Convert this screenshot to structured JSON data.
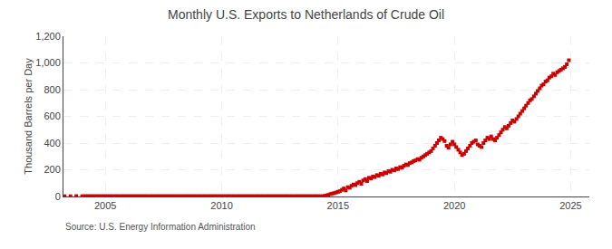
{
  "chart_data": {
    "type": "scatter",
    "title": "Monthly U.S. Exports to Netherlands of Crude Oil",
    "ylabel": "Thousand Barrels per Day",
    "annotations": [
      "Source: U.S. Energy Information Administration"
    ],
    "color": "#cc0000",
    "marker": "square",
    "grid": true,
    "xlim": [
      2003.2,
      2025.8
    ],
    "xticks": [
      2005,
      2010,
      2015,
      2020,
      2025
    ],
    "ylim": [
      0,
      1200
    ],
    "yticks": [
      0,
      200,
      400,
      600,
      800,
      {
        "value": 1000,
        "label": "1,000"
      },
      {
        "value": 1200,
        "label": "1,200"
      }
    ],
    "x": [
      2003.25,
      2003.5,
      2003.75,
      2004.0,
      2004.08,
      2004.17,
      2004.25,
      2004.33,
      2004.42,
      2004.5,
      2004.58,
      2004.67,
      2004.75,
      2004.83,
      2004.92,
      2005.0,
      2005.08,
      2005.17,
      2005.25,
      2005.33,
      2005.42,
      2005.5,
      2005.58,
      2005.67,
      2005.75,
      2005.83,
      2005.92,
      2006.0,
      2006.08,
      2006.17,
      2006.25,
      2006.33,
      2006.42,
      2006.5,
      2006.58,
      2006.67,
      2006.75,
      2006.83,
      2006.92,
      2007.0,
      2007.08,
      2007.17,
      2007.25,
      2007.33,
      2007.42,
      2007.5,
      2007.58,
      2007.67,
      2007.75,
      2007.83,
      2007.92,
      2008.0,
      2008.08,
      2008.17,
      2008.25,
      2008.33,
      2008.42,
      2008.5,
      2008.58,
      2008.67,
      2008.75,
      2008.83,
      2008.92,
      2009.0,
      2009.08,
      2009.17,
      2009.25,
      2009.33,
      2009.42,
      2009.5,
      2009.58,
      2009.67,
      2009.75,
      2009.83,
      2009.92,
      2010.0,
      2010.08,
      2010.17,
      2010.25,
      2010.33,
      2010.42,
      2010.5,
      2010.58,
      2010.67,
      2010.75,
      2010.83,
      2010.92,
      2011.0,
      2011.08,
      2011.17,
      2011.25,
      2011.33,
      2011.42,
      2011.5,
      2011.58,
      2011.67,
      2011.75,
      2011.83,
      2011.92,
      2012.0,
      2012.08,
      2012.17,
      2012.25,
      2012.33,
      2012.42,
      2012.5,
      2012.58,
      2012.67,
      2012.75,
      2012.83,
      2012.92,
      2013.0,
      2013.08,
      2013.17,
      2013.25,
      2013.33,
      2013.42,
      2013.5,
      2013.58,
      2013.67,
      2013.75,
      2013.83,
      2013.92,
      2014.0,
      2014.08,
      2014.17,
      2014.25,
      2014.33,
      2014.42,
      2014.5,
      2014.58,
      2014.67,
      2014.75,
      2014.83,
      2014.92,
      2015.0,
      2015.08,
      2015.17,
      2015.25,
      2015.33,
      2015.42,
      2015.5,
      2015.58,
      2015.67,
      2015.75,
      2015.83,
      2015.92,
      2016.0,
      2016.08,
      2016.17,
      2016.25,
      2016.33,
      2016.42,
      2016.5,
      2016.58,
      2016.67,
      2016.75,
      2016.83,
      2016.92,
      2017.0,
      2017.08,
      2017.17,
      2017.25,
      2017.33,
      2017.42,
      2017.5,
      2017.58,
      2017.67,
      2017.75,
      2017.83,
      2017.92,
      2018.0,
      2018.08,
      2018.17,
      2018.25,
      2018.33,
      2018.42,
      2018.5,
      2018.58,
      2018.67,
      2018.75,
      2018.83,
      2018.92,
      2019.0,
      2019.08,
      2019.17,
      2019.25,
      2019.33,
      2019.42,
      2019.5,
      2019.58,
      2019.67,
      2019.75,
      2019.83,
      2019.92,
      2020.0,
      2020.08,
      2020.17,
      2020.25,
      2020.33,
      2020.42,
      2020.5,
      2020.58,
      2020.67,
      2020.75,
      2020.83,
      2020.92,
      2021.0,
      2021.08,
      2021.17,
      2021.25,
      2021.33,
      2021.42,
      2021.5,
      2021.58,
      2021.67,
      2021.75,
      2021.83,
      2021.92,
      2022.0,
      2022.08,
      2022.17,
      2022.25,
      2022.33,
      2022.42,
      2022.5,
      2022.58,
      2022.67,
      2022.75,
      2022.83,
      2022.92,
      2023.0,
      2023.08,
      2023.17,
      2023.25,
      2023.33,
      2023.42,
      2023.5,
      2023.58,
      2023.67,
      2023.75,
      2023.83,
      2023.92,
      2024.0,
      2024.08,
      2024.17,
      2024.25,
      2024.33,
      2024.42,
      2024.5,
      2024.58,
      2024.67,
      2024.75,
      2024.83,
      2024.92
    ],
    "values": [
      2,
      2,
      3,
      2,
      2,
      2,
      2,
      2,
      2,
      2,
      2,
      2,
      2,
      2,
      2,
      2,
      2,
      2,
      2,
      2,
      2,
      2,
      2,
      2,
      2,
      2,
      2,
      2,
      2,
      2,
      2,
      2,
      2,
      2,
      2,
      2,
      2,
      2,
      2,
      2,
      2,
      2,
      2,
      2,
      2,
      2,
      2,
      2,
      2,
      2,
      2,
      2,
      2,
      2,
      2,
      2,
      2,
      2,
      2,
      2,
      2,
      2,
      2,
      2,
      2,
      2,
      2,
      2,
      2,
      2,
      2,
      2,
      2,
      2,
      2,
      2,
      2,
      2,
      2,
      2,
      2,
      2,
      2,
      2,
      2,
      2,
      2,
      2,
      2,
      2,
      2,
      2,
      2,
      2,
      2,
      2,
      2,
      2,
      2,
      2,
      2,
      2,
      2,
      2,
      2,
      2,
      2,
      2,
      2,
      2,
      2,
      2,
      2,
      2,
      2,
      2,
      2,
      2,
      2,
      2,
      2,
      2,
      2,
      2,
      2,
      2,
      2,
      2,
      5,
      8,
      12,
      18,
      22,
      25,
      30,
      35,
      40,
      50,
      60,
      45,
      70,
      65,
      80,
      90,
      85,
      100,
      110,
      95,
      120,
      130,
      115,
      140,
      135,
      150,
      145,
      160,
      155,
      170,
      165,
      180,
      175,
      190,
      185,
      200,
      195,
      210,
      205,
      220,
      215,
      230,
      240,
      235,
      250,
      255,
      265,
      270,
      280,
      275,
      290,
      300,
      310,
      320,
      330,
      340,
      360,
      380,
      400,
      420,
      440,
      430,
      415,
      380,
      365,
      390,
      410,
      390,
      370,
      350,
      330,
      310,
      320,
      340,
      360,
      380,
      400,
      410,
      420,
      390,
      380,
      370,
      400,
      420,
      440,
      430,
      450,
      430,
      420,
      440,
      460,
      480,
      500,
      520,
      510,
      530,
      550,
      570,
      560,
      580,
      600,
      620,
      640,
      660,
      680,
      700,
      720,
      730,
      750,
      770,
      790,
      810,
      830,
      840,
      860,
      870,
      890,
      900,
      920,
      910,
      930,
      940,
      950,
      960,
      970,
      990,
      1020
    ]
  }
}
